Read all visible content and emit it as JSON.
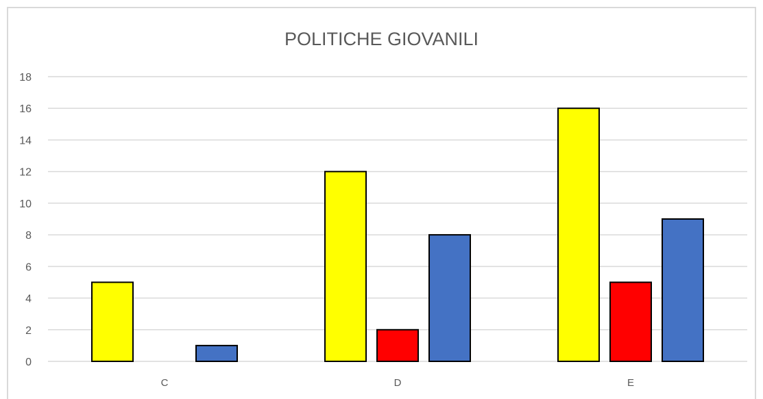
{
  "chart_data": {
    "type": "bar",
    "title": "POLITICHE GIOVANILI",
    "categories": [
      "C",
      "D",
      "E"
    ],
    "series": [
      {
        "color": "#ffff00",
        "values": [
          5,
          12,
          16
        ]
      },
      {
        "color": "#ff0000",
        "values": [
          0,
          2,
          5
        ]
      },
      {
        "color": "#4472c4",
        "values": [
          1,
          8,
          9
        ]
      }
    ],
    "ylim": [
      0,
      18
    ],
    "yticks": [
      0,
      2,
      4,
      6,
      8,
      10,
      12,
      14,
      16,
      18
    ],
    "grid": true,
    "legend": "none",
    "bar_edge_color": "#000000",
    "gridline_color": "#d9d9d9"
  }
}
